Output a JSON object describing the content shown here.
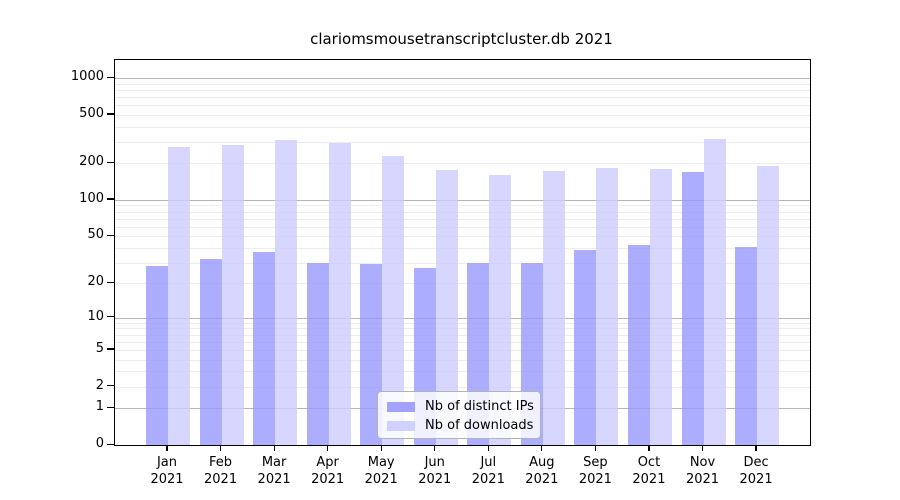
{
  "title": "clariomsmousetranscriptcluster.db 2021",
  "colors": {
    "distinct_ips": "#9999ff",
    "downloads": "#ccccff",
    "grid_major": "#b5b5b5",
    "grid_minor": "#ececec",
    "axis": "#000000",
    "legend_border": "#b3b3b3",
    "background": "#ffffff"
  },
  "chart_data": {
    "type": "bar",
    "title": "clariomsmousetranscriptcluster.db 2021",
    "categories": [
      "Jan",
      "Feb",
      "Mar",
      "Apr",
      "May",
      "Jun",
      "Jul",
      "Aug",
      "Sep",
      "Oct",
      "Nov",
      "Dec"
    ],
    "category_year": "2021",
    "series": [
      {
        "name": "Nb of distinct IPs",
        "color": "#9999ff",
        "values": [
          28,
          32,
          37,
          30,
          29,
          27,
          30,
          30,
          38,
          42,
          171,
          41
        ]
      },
      {
        "name": "Nb of downloads",
        "color": "#ccccff",
        "values": [
          271,
          281,
          311,
          295,
          228,
          178,
          161,
          172,
          185,
          180,
          318,
          192
        ]
      }
    ],
    "yticks": [
      0,
      1,
      2,
      5,
      10,
      20,
      50,
      100,
      200,
      500,
      1000
    ],
    "xlabel": "",
    "ylabel": "",
    "scale": "log1p",
    "ylim": [
      0,
      1380
    ],
    "grid": true,
    "legend_position": "lower-center-inside"
  }
}
